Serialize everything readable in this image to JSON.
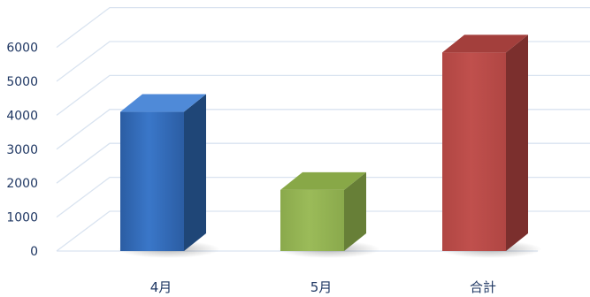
{
  "chart_data": {
    "type": "bar",
    "title": "",
    "xlabel": "",
    "ylabel": "",
    "categories": [
      "4月",
      "5月",
      "合計"
    ],
    "values": [
      4100,
      1800,
      5850
    ],
    "ylim": [
      0,
      6000
    ],
    "yticks": [
      0,
      1000,
      2000,
      3000,
      4000,
      5000,
      6000
    ],
    "grid": true,
    "legend": "none",
    "colors": {
      "4月": {
        "front": "#3a77c9",
        "frontDark": "#2b5da3",
        "side": "#1f4677",
        "top": "#4f8ad8"
      },
      "5月": {
        "front": "#9bbb59",
        "frontDark": "#8aa94c",
        "side": "#677f37",
        "top": "#88a847"
      },
      "合計": {
        "front": "#c0504d",
        "frontDark": "#b04643",
        "side": "#7b2f2d",
        "top": "#a33f3c"
      }
    }
  }
}
